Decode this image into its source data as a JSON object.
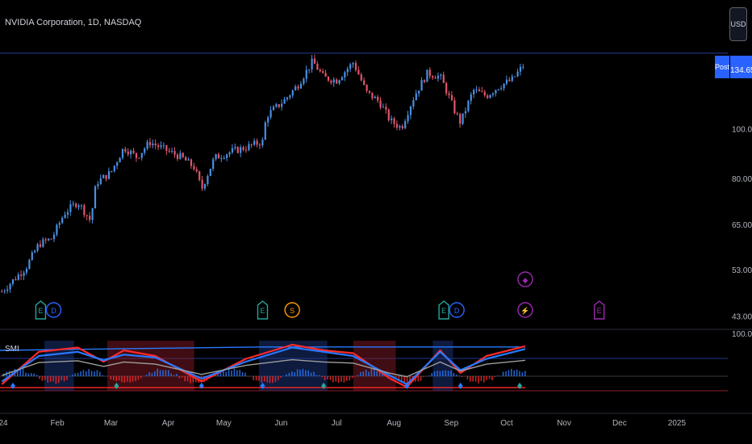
{
  "header": {
    "title": "NVIDIA Corporation, 1D, NASDAQ",
    "currency": "USD"
  },
  "last_price": {
    "badge": "Post",
    "value": "134.65"
  },
  "indicator": {
    "label": "SMI"
  },
  "colors": {
    "bull": "#4a90e2",
    "bear": "#e0566c",
    "neutral": "#e6e6e6",
    "resistance": "#2a3d8f",
    "smi_red": "#ff2a2a",
    "smi_blue": "#2979ff",
    "smi_grey": "#9e9e9e",
    "band_blue": "#1e3a8a",
    "band_red": "#8b1c2b"
  },
  "events": [
    {
      "kind": "E",
      "color": "#26a69a",
      "at": "2024-01-23"
    },
    {
      "kind": "D",
      "color": "#2962ff",
      "at": "2024-01-30"
    },
    {
      "kind": "E",
      "color": "#26a69a",
      "at": "2024-05-22"
    },
    {
      "kind": "S",
      "color": "#ff9800",
      "at": "2024-06-07"
    },
    {
      "kind": "E",
      "color": "#26a69a",
      "at": "2024-08-28"
    },
    {
      "kind": "D",
      "color": "#2962ff",
      "at": "2024-09-04"
    },
    {
      "kind": "⚡",
      "color": "#9c27b0",
      "at": "2024-10-11"
    },
    {
      "kind": "E",
      "color": "#9c27b0",
      "at": "2024-11-20"
    }
  ],
  "event_extra": {
    "kind": "◆",
    "color": "#9c27b0",
    "at": "2024-10-11"
  },
  "chart_data": [
    {
      "type": "candlestick",
      "title": "NVIDIA Corporation, 1D, NASDAQ",
      "yscale": "log",
      "ylim": [
        42,
        148
      ],
      "yticks": [
        "100.00",
        "80.00",
        "65.00",
        "53.00",
        "43.00"
      ],
      "xticks": [
        "24",
        "Feb",
        "Mar",
        "Apr",
        "May",
        "Jun",
        "Jul",
        "Aug",
        "Sep",
        "Oct",
        "Nov",
        "Dec",
        "2025"
      ],
      "resistance": 140.7,
      "closes": [
        [
          "2024-01-02",
          48.0
        ],
        [
          "2024-01-08",
          50.5
        ],
        [
          "2024-01-15",
          53.5
        ],
        [
          "2024-01-22",
          59.5
        ],
        [
          "2024-01-29",
          61.0
        ],
        [
          "2024-02-05",
          68.5
        ],
        [
          "2024-02-12",
          72.0
        ],
        [
          "2024-02-19",
          66.0
        ],
        [
          "2024-02-22",
          78.5
        ],
        [
          "2024-03-01",
          82.2
        ],
        [
          "2024-03-08",
          92.0
        ],
        [
          "2024-03-15",
          88.0
        ],
        [
          "2024-03-22",
          94.2
        ],
        [
          "2024-04-01",
          90.4
        ],
        [
          "2024-04-08",
          88.0
        ],
        [
          "2024-04-15",
          84.0
        ],
        [
          "2024-04-19",
          76.2
        ],
        [
          "2024-04-26",
          87.8
        ],
        [
          "2024-05-06",
          90.5
        ],
        [
          "2024-05-13",
          92.0
        ],
        [
          "2024-05-22",
          94.5
        ],
        [
          "2024-05-24",
          106.0
        ],
        [
          "2024-06-03",
          114.0
        ],
        [
          "2024-06-10",
          121.8
        ],
        [
          "2024-06-18",
          135.6
        ],
        [
          "2024-06-24",
          126.0
        ],
        [
          "2024-07-01",
          124.5
        ],
        [
          "2024-07-10",
          134.9
        ],
        [
          "2024-07-17",
          118.0
        ],
        [
          "2024-07-24",
          113.1
        ],
        [
          "2024-07-30",
          103.7
        ],
        [
          "2024-08-05",
          100.5
        ],
        [
          "2024-08-12",
          116.0
        ],
        [
          "2024-08-19",
          128.5
        ],
        [
          "2024-08-26",
          126.5
        ],
        [
          "2024-09-03",
          108.0
        ],
        [
          "2024-09-06",
          102.8
        ],
        [
          "2024-09-13",
          119.1
        ],
        [
          "2024-09-20",
          116.0
        ],
        [
          "2024-09-27",
          121.4
        ],
        [
          "2024-10-04",
          124.9
        ],
        [
          "2024-10-11",
          134.6
        ]
      ]
    },
    {
      "type": "line",
      "title": "SMI",
      "ylim": [
        -100,
        100
      ],
      "yticks": [
        "100.00"
      ],
      "series": [
        {
          "name": "",
          "color": "#ff2a2a",
          "points": [
            [
              "2024-01-02",
              -60
            ],
            [
              "2024-01-22",
              55
            ],
            [
              "2024-02-12",
              70
            ],
            [
              "2024-02-26",
              20
            ],
            [
              "2024-03-08",
              60
            ],
            [
              "2024-03-25",
              40
            ],
            [
              "2024-04-19",
              -50
            ],
            [
              "2024-05-13",
              30
            ],
            [
              "2024-06-07",
              80
            ],
            [
              "2024-06-24",
              60
            ],
            [
              "2024-07-10",
              50
            ],
            [
              "2024-07-30",
              -40
            ],
            [
              "2024-08-08",
              -70
            ],
            [
              "2024-08-26",
              60
            ],
            [
              "2024-09-06",
              -20
            ],
            [
              "2024-09-20",
              40
            ],
            [
              "2024-10-11",
              75
            ]
          ]
        },
        {
          "name": "",
          "color": "#2979ff",
          "points": [
            [
              "2024-01-02",
              -50
            ],
            [
              "2024-01-22",
              40
            ],
            [
              "2024-02-12",
              55
            ],
            [
              "2024-02-26",
              25
            ],
            [
              "2024-03-08",
              45
            ],
            [
              "2024-03-25",
              35
            ],
            [
              "2024-04-19",
              -40
            ],
            [
              "2024-05-13",
              20
            ],
            [
              "2024-06-07",
              70
            ],
            [
              "2024-06-24",
              55
            ],
            [
              "2024-07-10",
              40
            ],
            [
              "2024-07-30",
              -30
            ],
            [
              "2024-08-08",
              -60
            ],
            [
              "2024-08-26",
              55
            ],
            [
              "2024-09-06",
              -10
            ],
            [
              "2024-09-20",
              30
            ],
            [
              "2024-10-11",
              65
            ]
          ]
        }
      ]
    }
  ]
}
